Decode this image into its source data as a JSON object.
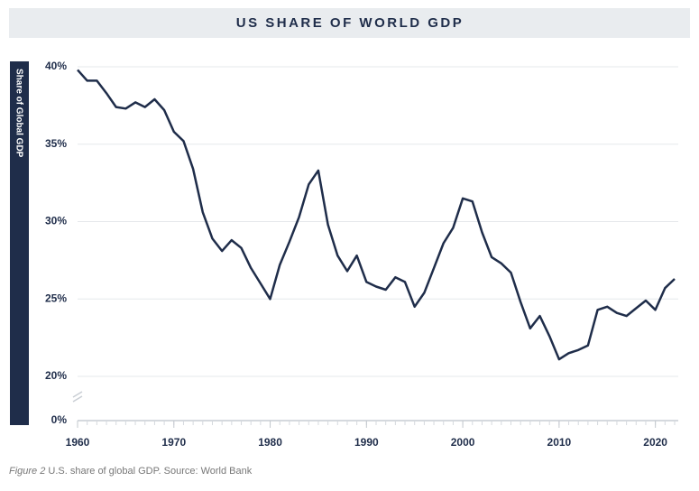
{
  "chart_data": {
    "type": "line",
    "title": "US SHARE OF WORLD GDP",
    "y_label": "Share of Global GDP",
    "caption_label": "Figure 2",
    "caption": "U.S. share of global GDP.  Source: World Bank",
    "x": [
      1960,
      1961,
      1962,
      1963,
      1964,
      1965,
      1966,
      1967,
      1968,
      1969,
      1970,
      1971,
      1972,
      1973,
      1974,
      1975,
      1976,
      1977,
      1978,
      1979,
      1980,
      1981,
      1982,
      1983,
      1984,
      1985,
      1986,
      1987,
      1988,
      1989,
      1990,
      1991,
      1992,
      1993,
      1994,
      1995,
      1996,
      1997,
      1998,
      1999,
      2000,
      2001,
      2002,
      2003,
      2004,
      2005,
      2006,
      2007,
      2008,
      2009,
      2010,
      2011,
      2012,
      2013,
      2014,
      2015,
      2016,
      2017,
      2018,
      2019,
      2020,
      2021,
      2022
    ],
    "series": [
      {
        "name": "US share",
        "color": "#1f2d4a",
        "values": [
          39.8,
          39.1,
          39.1,
          38.3,
          37.4,
          37.3,
          37.7,
          37.4,
          37.9,
          37.2,
          35.8,
          35.2,
          33.4,
          30.6,
          28.9,
          28.1,
          28.8,
          28.3,
          27.0,
          26.0,
          25.0,
          27.2,
          28.7,
          30.3,
          32.4,
          33.3,
          29.8,
          27.8,
          26.8,
          27.8,
          26.1,
          25.8,
          25.6,
          26.4,
          26.1,
          24.5,
          25.4,
          27.0,
          28.6,
          29.6,
          31.5,
          31.3,
          29.3,
          27.7,
          27.3,
          26.7,
          24.8,
          23.1,
          23.9,
          22.6,
          21.1,
          21.5,
          21.7,
          22.0,
          24.3,
          24.5,
          24.1,
          23.9,
          24.4,
          24.9,
          24.3,
          25.7,
          26.3
        ]
      }
    ],
    "xlim": [
      1960,
      2022
    ],
    "xticks": [
      1960,
      1970,
      1980,
      1990,
      2000,
      2010,
      2020
    ],
    "ylim": [
      20,
      40
    ],
    "yticks": [
      {
        "value": 0,
        "label": "0%"
      },
      {
        "value": 20,
        "label": "20%"
      },
      {
        "value": 25,
        "label": "25%"
      },
      {
        "value": 30,
        "label": "30%"
      },
      {
        "value": 35,
        "label": "35%"
      },
      {
        "value": 40,
        "label": "40%"
      }
    ],
    "axis_break": true,
    "grid": true
  }
}
